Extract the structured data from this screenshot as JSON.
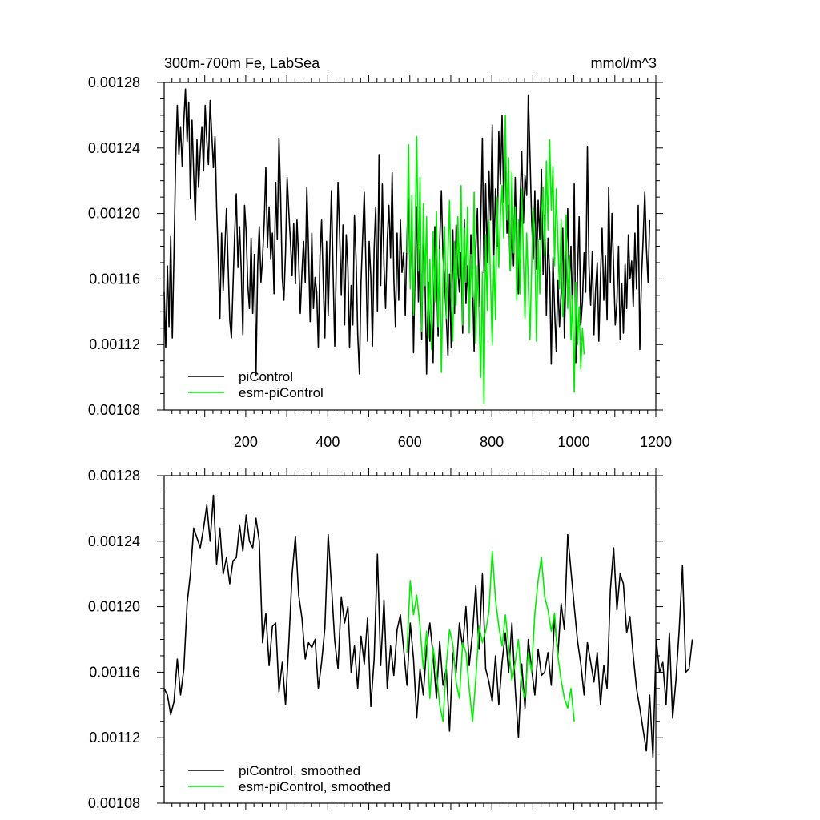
{
  "chart_data": [
    {
      "type": "line",
      "title": "300m-700m Fe, LabSea",
      "units": "mmol/m^3",
      "xlabel": "",
      "ylabel": "",
      "xlim": [
        1,
        1200
      ],
      "ylim": [
        0.00108,
        0.00128
      ],
      "xticks": [
        200,
        400,
        600,
        800,
        1000,
        1200
      ],
      "xtick_labels": [
        "200",
        "400",
        "600",
        "800",
        "1000",
        "1200"
      ],
      "yticks": [
        0.00108,
        0.00112,
        0.00116,
        0.0012,
        0.00124,
        0.00128
      ],
      "ytick_labels": [
        "0.00108",
        "0.00112",
        "0.00116",
        "0.00120",
        "0.00124",
        "0.00128"
      ],
      "legend_position": "bottom-left",
      "series": [
        {
          "name": "piControl",
          "color": "#000000",
          "x_start": 1,
          "x_step": 4,
          "values": [
            0.001152,
            0.001118,
            0.001168,
            0.001131,
            0.001186,
            0.001124,
            0.001176,
            0.001231,
            0.001266,
            0.001236,
            0.001253,
            0.001229,
            0.001257,
            0.001276,
            0.001244,
            0.001268,
            0.001209,
            0.001257,
            0.001224,
            0.001196,
            0.001245,
            0.001216,
            0.001238,
            0.001253,
            0.001226,
            0.001266,
            0.001244,
            0.00123,
            0.001269,
            0.001249,
            0.001228,
            0.001247,
            0.001204,
            0.001173,
            0.001136,
            0.001188,
            0.001153,
            0.001178,
            0.001203,
            0.001168,
            0.001135,
            0.001124,
            0.001156,
            0.001188,
            0.001212,
            0.001167,
            0.001192,
            0.001165,
            0.001126,
            0.001205,
            0.001189,
            0.001156,
            0.001142,
            0.001185,
            0.001139,
            0.001175,
            0.001101,
            0.001168,
            0.001192,
            0.001158,
            0.001173,
            0.001195,
            0.001228,
            0.001179,
            0.001204,
            0.001172,
            0.001188,
            0.001151,
            0.001219,
            0.001184,
            0.001246,
            0.001212,
            0.001161,
            0.001147,
            0.001176,
            0.001222,
            0.001201,
            0.001183,
            0.001162,
            0.001194,
            0.001157,
            0.001196,
            0.001172,
            0.001139,
            0.001164,
            0.001183,
            0.001158,
            0.001216,
            0.001177,
            0.001134,
            0.001188,
            0.001142,
            0.001161,
            0.001152,
            0.001118,
            0.001174,
            0.001196,
            0.001157,
            0.001124,
            0.001183,
            0.001138,
            0.001178,
            0.001214,
            0.001163,
            0.001119,
            0.001172,
            0.001219,
            0.001186,
            0.00115,
            0.001193,
            0.001132,
            0.001187,
            0.001167,
            0.001118,
            0.001156,
            0.001132,
            0.001199,
            0.001171,
            0.001126,
            0.001102,
            0.001158,
            0.001186,
            0.001213,
            0.001169,
            0.001122,
            0.001183,
            0.001161,
            0.001119,
            0.001178,
            0.001204,
            0.00114,
            0.001236,
            0.001156,
            0.001218,
            0.001168,
            0.001142,
            0.001184,
            0.001205,
            0.001173,
            0.001225,
            0.00116,
            0.001131,
            0.001188,
            0.001147,
            0.001196,
            0.001164,
            0.001176,
            0.001138,
            0.001187,
            0.001209,
            0.001158,
            0.001193,
            0.001115,
            0.001168,
            0.001204,
            0.001146,
            0.001178,
            0.001123,
            0.00119,
            0.001163,
            0.001102,
            0.001158,
            0.001122,
            0.001141,
            0.001109,
            0.001192,
            0.001167,
            0.001125,
            0.001182,
            0.001214,
            0.001174,
            0.001158,
            0.001137,
            0.001113,
            0.001163,
            0.001118,
            0.00119,
            0.001139,
            0.001193,
            0.001166,
            0.001152,
            0.001176,
            0.001127,
            0.001196,
            0.001145,
            0.001168,
            0.001134,
            0.001187,
            0.00116,
            0.001116,
            0.001178,
            0.001203,
            0.001143,
            0.001195,
            0.001246,
            0.001164,
            0.001218,
            0.00117,
            0.001226,
            0.001196,
            0.001254,
            0.001174,
            0.001215,
            0.00118,
            0.00125,
            0.001218,
            0.00126,
            0.001207,
            0.001239,
            0.001188,
            0.001205,
            0.001165,
            0.001196,
            0.001168,
            0.001222,
            0.001179,
            0.001151,
            0.001208,
            0.001238,
            0.001194,
            0.001223,
            0.001211,
            0.001272,
            0.001236,
            0.001197,
            0.001172,
            0.001214,
            0.001166,
            0.001208,
            0.001184,
            0.001227,
            0.001163,
            0.001199,
            0.001138,
            0.001185,
            0.001164,
            0.001108,
            0.001173,
            0.001142,
            0.001116,
            0.001159,
            0.001131,
            0.001152,
            0.001191,
            0.001124,
            0.001168,
            0.001203,
            0.001156,
            0.00118,
            0.001137,
            0.001218,
            0.001109,
            0.001164,
            0.001198,
            0.001132,
            0.001146,
            0.001176,
            0.001152,
            0.001241,
            0.001168,
            0.001144,
            0.001177,
            0.001126,
            0.001153,
            0.00117,
            0.001122,
            0.001162,
            0.001191,
            0.001147,
            0.001174,
            0.001135,
            0.001216,
            0.001158,
            0.0012,
            0.001166,
            0.001132,
            0.001146,
            0.00118,
            0.001123,
            0.001157,
            0.001127,
            0.001169,
            0.001142,
            0.001187,
            0.00116,
            0.001171,
            0.001143,
            0.001188,
            0.001154,
            0.001205,
            0.001117,
            0.001161,
            0.001184,
            0.001213,
            0.001179,
            0.001158,
            0.001196
          ]
        },
        {
          "name": "esm-piControl",
          "color": "#00ee00",
          "x_start": 593,
          "x_step": 4,
          "values": [
            0.001176,
            0.001242,
            0.001154,
            0.001211,
            0.001138,
            0.001187,
            0.001247,
            0.001165,
            0.001222,
            0.001128,
            0.001206,
            0.001156,
            0.001198,
            0.001124,
            0.001172,
            0.001117,
            0.001189,
            0.001146,
            0.001201,
            0.001131,
            0.001178,
            0.001103,
            0.00116,
            0.001192,
            0.001136,
            0.001175,
            0.001208,
            0.00115,
            0.001122,
            0.001183,
            0.001144,
            0.001198,
            0.001161,
            0.001217,
            0.001132,
            0.001191,
            0.001158,
            0.001204,
            0.001127,
            0.001175,
            0.001149,
            0.001213,
            0.001121,
            0.001168,
            0.001138,
            0.0011,
            0.001164,
            0.001084,
            0.001187,
            0.001141,
            0.001196,
            0.001158,
            0.00112,
            0.001174,
            0.001135,
            0.00121,
            0.001167,
            0.001199,
            0.001217,
            0.001185,
            0.00126,
            0.001196,
            0.001234,
            0.001165,
            0.001225,
            0.001176,
            0.001204,
            0.001147,
            0.001196,
            0.001151,
            0.001215,
            0.001173,
            0.001136,
            0.001188,
            0.001158,
            0.001123,
            0.001166,
            0.001203,
            0.001178,
            0.001122,
            0.001184,
            0.001151,
            0.001197,
            0.001216,
            0.001174,
            0.001232,
            0.00119,
            0.001245,
            0.001202,
            0.001229,
            0.001168,
            0.001215,
            0.001183,
            0.001154,
            0.001196,
            0.001137,
            0.001165,
            0.001199,
            0.001142,
            0.001174,
            0.001123,
            0.00115,
            0.001091,
            0.001158,
            0.00112,
            0.001143,
            0.001105,
            0.00113,
            0.001114
          ]
        }
      ]
    },
    {
      "type": "line",
      "title": "",
      "xlabel": "",
      "ylabel": "",
      "xlim": [
        1,
        1200
      ],
      "ylim": [
        0.00108,
        0.00128
      ],
      "yticks": [
        0.00108,
        0.00112,
        0.00116,
        0.0012,
        0.00124,
        0.00128
      ],
      "ytick_labels": [
        "0.00108",
        "0.00112",
        "0.00116",
        "0.00120",
        "0.00124",
        "0.00128"
      ],
      "legend_position": "bottom-left",
      "series": [
        {
          "name": "piControl, smoothed",
          "color": "#000000",
          "x_start": 1,
          "x_step": 8,
          "values": [
            0.00115,
            0.001146,
            0.001134,
            0.001142,
            0.001168,
            0.001146,
            0.001162,
            0.001202,
            0.00122,
            0.001248,
            0.001242,
            0.001236,
            0.001248,
            0.001262,
            0.00124,
            0.001268,
            0.001226,
            0.001248,
            0.00122,
            0.00123,
            0.001214,
            0.001228,
            0.00123,
            0.00125,
            0.001234,
            0.001256,
            0.00124,
            0.001236,
            0.001254,
            0.00124,
            0.001178,
            0.001196,
            0.001164,
            0.001188,
            0.00119,
            0.001148,
            0.001166,
            0.00114,
            0.001178,
            0.00122,
            0.001243,
            0.001207,
            0.001193,
            0.001168,
            0.001178,
            0.001175,
            0.00118,
            0.00115,
            0.001166,
            0.001187,
            0.001244,
            0.001213,
            0.001179,
            0.001162,
            0.001206,
            0.00119,
            0.0012,
            0.00116,
            0.001176,
            0.00115,
            0.001182,
            0.001165,
            0.001193,
            0.001139,
            0.001168,
            0.001232,
            0.001164,
            0.001204,
            0.00115,
            0.001176,
            0.001158,
            0.001186,
            0.001195,
            0.001174,
            0.001152,
            0.00119,
            0.001168,
            0.001132,
            0.001162,
            0.001146,
            0.001175,
            0.00119,
            0.00117,
            0.001144,
            0.001179,
            0.001152,
            0.001162,
            0.001124,
            0.001172,
            0.00116,
            0.00119,
            0.001175,
            0.0012,
            0.001164,
            0.001184,
            0.001213,
            0.001174,
            0.00122,
            0.001162,
            0.001154,
            0.001142,
            0.00117,
            0.00114,
            0.001166,
            0.001184,
            0.00116,
            0.00119,
            0.00115,
            0.00112,
            0.001165,
            0.001138,
            0.00118,
            0.001162,
            0.001146,
            0.001174,
            0.001158,
            0.00116,
            0.001172,
            0.001152,
            0.001194,
            0.00117,
            0.001202,
            0.001186,
            0.001244,
            0.001222,
            0.0012,
            0.001179,
            0.001165,
            0.001146,
            0.001178,
            0.001166,
            0.001154,
            0.001172,
            0.00114,
            0.001164,
            0.00115,
            0.00121,
            0.001236,
            0.001198,
            0.00122,
            0.001214,
            0.001184,
            0.001194,
            0.00117,
            0.00115,
            0.001138,
            0.001125,
            0.001112,
            0.001146,
            0.001108,
            0.00118,
            0.00116,
            0.001166,
            0.00114,
            0.001184,
            0.001132,
            0.001155,
            0.001186,
            0.001225,
            0.00116,
            0.001162,
            0.00118
          ]
        },
        {
          "name": "esm-piControl, smoothed",
          "color": "#00ee00",
          "x_start": 593,
          "x_step": 8,
          "values": [
            0.001172,
            0.001216,
            0.001195,
            0.001207,
            0.001188,
            0.001162,
            0.001185,
            0.001144,
            0.001175,
            0.00116,
            0.00114,
            0.00113,
            0.001164,
            0.001186,
            0.001177,
            0.001154,
            0.001144,
            0.001178,
            0.001172,
            0.00115,
            0.00113,
            0.001156,
            0.001188,
            0.001178,
            0.001185,
            0.001197,
            0.001234,
            0.001204,
            0.001188,
            0.001176,
            0.001195,
            0.001175,
            0.001155,
            0.001166,
            0.00118,
            0.001152,
            0.001144,
            0.001172,
            0.00116,
            0.001196,
            0.001216,
            0.00123,
            0.001206,
            0.001198,
            0.001185,
            0.001196,
            0.00117,
            0.001155,
            0.001144,
            0.001138,
            0.00115,
            0.00113
          ]
        }
      ]
    }
  ],
  "legend_top": [
    {
      "label": "piControl",
      "color": "#000000"
    },
    {
      "label": "esm-piControl",
      "color": "#00ee00"
    }
  ],
  "legend_bottom": [
    {
      "label": "piControl, smoothed",
      "color": "#000000"
    },
    {
      "label": "esm-piControl, smoothed",
      "color": "#00ee00"
    }
  ]
}
